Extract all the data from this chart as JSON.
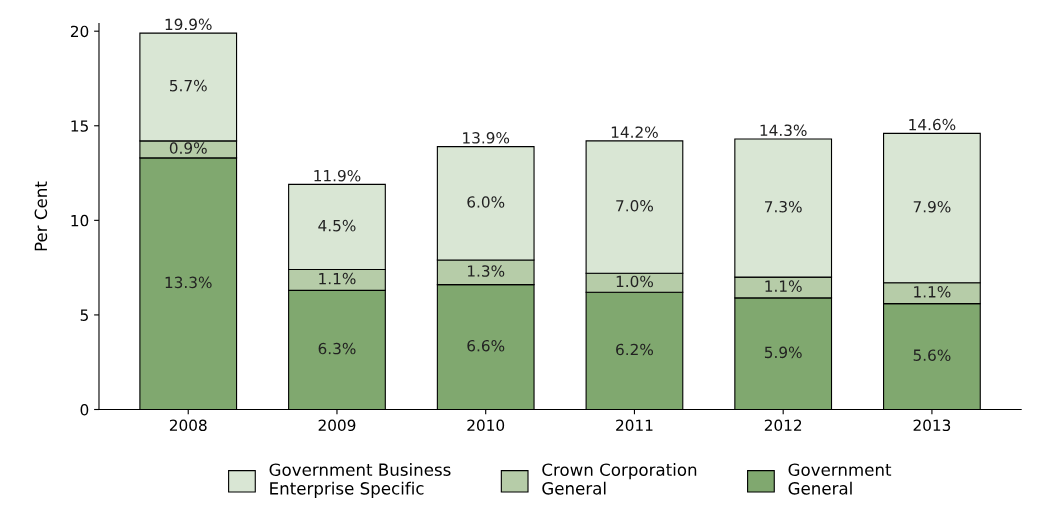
{
  "chart_data": {
    "type": "bar",
    "stacked": true,
    "ylabel": "Per Cent",
    "categories": [
      "2008",
      "2009",
      "2010",
      "2011",
      "2012",
      "2013"
    ],
    "series": [
      {
        "name": "Government\nGeneral",
        "color": "#80a86f",
        "values": [
          13.3,
          6.3,
          6.6,
          6.2,
          5.9,
          5.6
        ],
        "value_labels": [
          "13.3%",
          "6.3%",
          "6.6%",
          "6.2%",
          "5.9%",
          "5.6%"
        ]
      },
      {
        "name": "Crown Corporation\nGeneral",
        "color": "#b6cca8",
        "values": [
          0.9,
          1.1,
          1.3,
          1.0,
          1.1,
          1.1
        ],
        "value_labels": [
          "0.9%",
          "1.1%",
          "1.3%",
          "1.0%",
          "1.1%",
          "1.1%"
        ]
      },
      {
        "name": "Government Business\nEnterprise Specific",
        "color": "#d9e6d4",
        "values": [
          5.7,
          4.5,
          6.0,
          7.0,
          7.3,
          7.9
        ],
        "value_labels": [
          "5.7%",
          "4.5%",
          "6.0%",
          "7.0%",
          "7.3%",
          "7.9%"
        ]
      }
    ],
    "totals": [
      "19.9%",
      "11.9%",
      "13.9%",
      "14.2%",
      "14.3%",
      "14.6%"
    ],
    "ylim": [
      0,
      20.4
    ],
    "yticks": [
      0,
      5,
      10,
      15,
      20
    ],
    "grid": false,
    "legend": "bottom"
  }
}
